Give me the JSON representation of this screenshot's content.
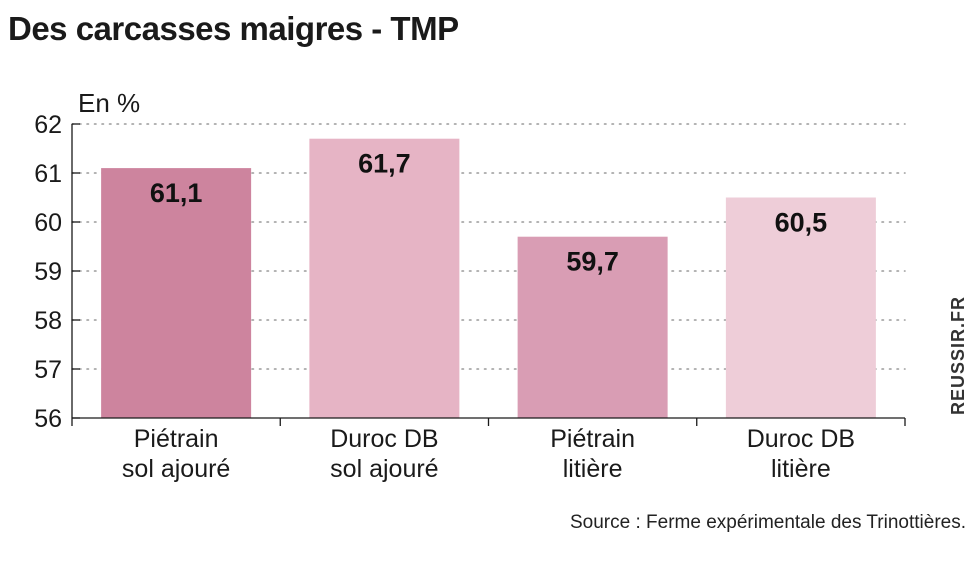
{
  "title": "Des carcasses maigres - TMP",
  "watermark": "REUSSIR.FR",
  "source": "Source : Ferme expérimentale des Trinottières.",
  "chart_data": {
    "type": "bar",
    "title": "Des carcasses maigres - TMP",
    "ylabel": "En %",
    "xlabel": "",
    "ylim": [
      56,
      62
    ],
    "yticks": [
      56,
      57,
      58,
      59,
      60,
      61,
      62
    ],
    "grid": true,
    "categories": [
      [
        "Piétrain",
        "sol ajouré"
      ],
      [
        "Duroc DB",
        "sol ajouré"
      ],
      [
        "Piétrain",
        "litière"
      ],
      [
        "Duroc DB",
        "litière"
      ]
    ],
    "values": [
      61.1,
      61.7,
      59.7,
      60.5
    ],
    "value_labels": [
      "61,1",
      "61,7",
      "59,7",
      "60,5"
    ],
    "colors": [
      "#cd849e",
      "#e6b4c5",
      "#d99db4",
      "#eecdd8"
    ]
  }
}
